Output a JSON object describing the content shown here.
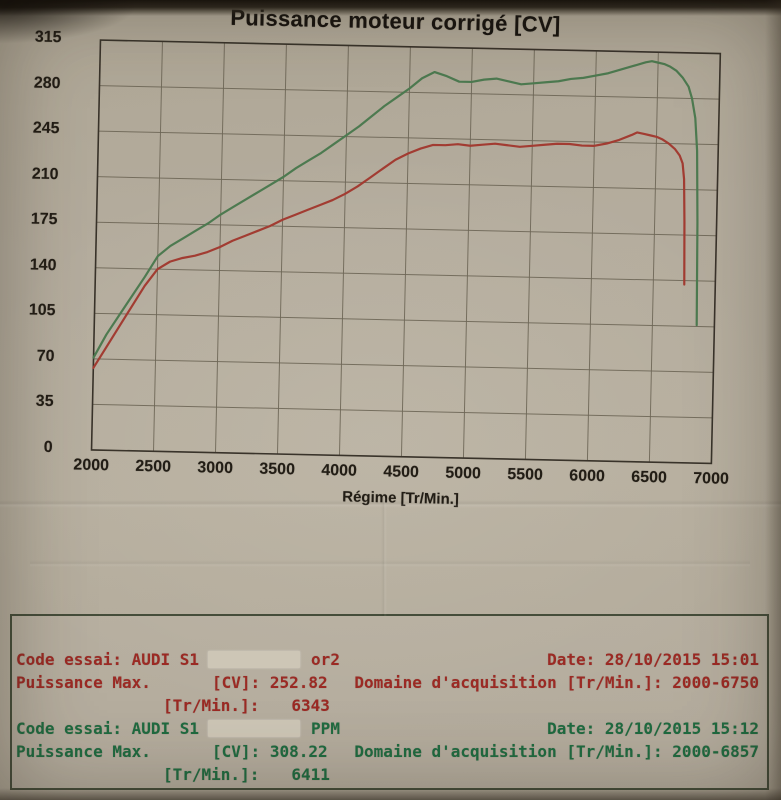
{
  "chart_data": {
    "type": "line",
    "title": "Puissance moteur corrigé [CV]",
    "xlabel": "Régime [Tr/Min.]",
    "ylabel": "",
    "xlim": [
      2000,
      7000
    ],
    "ylim": [
      0,
      315
    ],
    "x_ticks": [
      "2000",
      "2500",
      "3000",
      "3500",
      "4000",
      "4500",
      "5000",
      "5500",
      "6000",
      "6500",
      "7000"
    ],
    "y_ticks": [
      "0",
      "35",
      "70",
      "105",
      "140",
      "175",
      "210",
      "245",
      "280",
      "315"
    ],
    "grid": true,
    "legend_position": "none",
    "grid_color": "#6e6757",
    "border_color": "#39332a",
    "series": [
      {
        "name": "PPM",
        "color": "#4d7a50",
        "points": [
          [
            2000,
            71
          ],
          [
            2100,
            89
          ],
          [
            2200,
            104
          ],
          [
            2300,
            119
          ],
          [
            2400,
            134
          ],
          [
            2500,
            150
          ],
          [
            2600,
            158
          ],
          [
            2700,
            164
          ],
          [
            2800,
            170
          ],
          [
            2900,
            176
          ],
          [
            3000,
            183
          ],
          [
            3100,
            189
          ],
          [
            3200,
            195
          ],
          [
            3300,
            201
          ],
          [
            3400,
            207
          ],
          [
            3500,
            213
          ],
          [
            3600,
            220
          ],
          [
            3700,
            226
          ],
          [
            3800,
            232
          ],
          [
            3900,
            239
          ],
          [
            4000,
            246
          ],
          [
            4100,
            253
          ],
          [
            4200,
            261
          ],
          [
            4300,
            269
          ],
          [
            4400,
            276
          ],
          [
            4500,
            283
          ],
          [
            4600,
            291
          ],
          [
            4700,
            296
          ],
          [
            4800,
            293
          ],
          [
            4900,
            289
          ],
          [
            5000,
            289
          ],
          [
            5100,
            291
          ],
          [
            5200,
            292
          ],
          [
            5300,
            290
          ],
          [
            5400,
            288
          ],
          [
            5500,
            289
          ],
          [
            5600,
            290
          ],
          [
            5700,
            291
          ],
          [
            5800,
            293
          ],
          [
            5900,
            294
          ],
          [
            6000,
            296
          ],
          [
            6100,
            298
          ],
          [
            6200,
            301
          ],
          [
            6300,
            304
          ],
          [
            6400,
            307
          ],
          [
            6450,
            308
          ],
          [
            6500,
            307
          ],
          [
            6550,
            306
          ],
          [
            6600,
            304
          ],
          [
            6650,
            301
          ],
          [
            6700,
            296
          ],
          [
            6750,
            289
          ],
          [
            6780,
            280
          ],
          [
            6810,
            265
          ],
          [
            6830,
            240
          ],
          [
            6845,
            185
          ],
          [
            6857,
            106
          ]
        ]
      },
      {
        "name": "or2",
        "color": "#a23c32",
        "points": [
          [
            2000,
            63
          ],
          [
            2100,
            79
          ],
          [
            2200,
            95
          ],
          [
            2300,
            111
          ],
          [
            2400,
            127
          ],
          [
            2500,
            140
          ],
          [
            2600,
            146
          ],
          [
            2700,
            149
          ],
          [
            2800,
            151
          ],
          [
            2900,
            154
          ],
          [
            3000,
            158
          ],
          [
            3100,
            163
          ],
          [
            3200,
            167
          ],
          [
            3300,
            171
          ],
          [
            3400,
            175
          ],
          [
            3500,
            180
          ],
          [
            3600,
            184
          ],
          [
            3700,
            188
          ],
          [
            3800,
            192
          ],
          [
            3900,
            196
          ],
          [
            4000,
            201
          ],
          [
            4100,
            207
          ],
          [
            4200,
            214
          ],
          [
            4300,
            221
          ],
          [
            4400,
            228
          ],
          [
            4500,
            233
          ],
          [
            4600,
            237
          ],
          [
            4700,
            240
          ],
          [
            4800,
            240
          ],
          [
            4900,
            241
          ],
          [
            5000,
            240
          ],
          [
            5100,
            241
          ],
          [
            5200,
            242
          ],
          [
            5300,
            241
          ],
          [
            5400,
            240
          ],
          [
            5500,
            241
          ],
          [
            5600,
            242
          ],
          [
            5700,
            243
          ],
          [
            5800,
            243
          ],
          [
            5900,
            242
          ],
          [
            6000,
            242
          ],
          [
            6100,
            244
          ],
          [
            6200,
            247
          ],
          [
            6300,
            251
          ],
          [
            6343,
            253
          ],
          [
            6400,
            252
          ],
          [
            6450,
            251
          ],
          [
            6500,
            250
          ],
          [
            6550,
            248
          ],
          [
            6600,
            245
          ],
          [
            6650,
            241
          ],
          [
            6690,
            236
          ],
          [
            6715,
            230
          ],
          [
            6730,
            218
          ],
          [
            6740,
            185
          ],
          [
            6750,
            137
          ]
        ]
      }
    ]
  },
  "results_box": {
    "records": [
      {
        "code_label": "Code essai:",
        "vehicle": "AUDI S1",
        "code_suffix": "or2",
        "date_label": "Date:",
        "date_value": "28/10/2015 15:01",
        "power_label": "Puissance Max.",
        "cv_label": "[CV]:",
        "cv_value": "252.82",
        "domain_label": "Domaine d'acquisition [Tr/Min.]:",
        "domain_value": "2000-6750",
        "rpm_label": "[Tr/Min.]:",
        "rpm_value": "6343",
        "text_color": "#9b2a24"
      },
      {
        "code_label": "Code essai:",
        "vehicle": "AUDI S1",
        "code_suffix": "PPM",
        "date_label": "Date:",
        "date_value": "28/10/2015 15:12",
        "power_label": "Puissance Max.",
        "cv_label": "[CV]:",
        "cv_value": "308.22",
        "domain_label": "Domaine d'acquisition [Tr/Min.]:",
        "domain_value": "2000-6857",
        "rpm_label": "[Tr/Min.]:",
        "rpm_value": "6411",
        "text_color": "#1f6b40"
      }
    ]
  }
}
